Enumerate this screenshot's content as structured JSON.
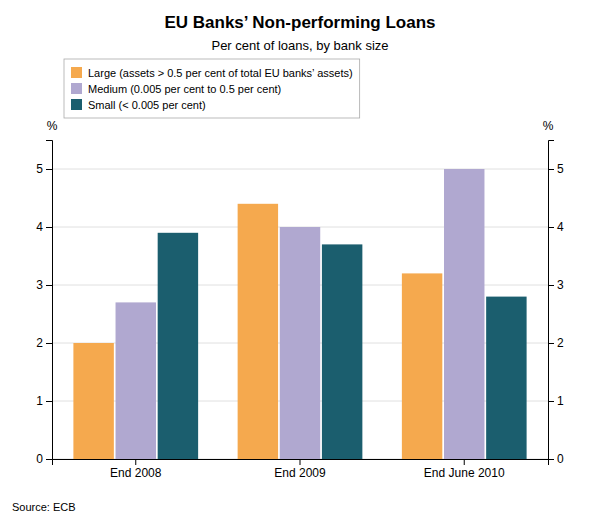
{
  "chart_data": {
    "type": "bar",
    "title": "EU Banks’ Non-performing Loans",
    "subtitle": "Per cent of loans, by bank size",
    "categories": [
      "End 2008",
      "End 2009",
      "End June 2010"
    ],
    "series": [
      {
        "name": "Large (assets > 0.5 per cent of total EU banks’ assets)",
        "color": "#F5A94E",
        "values": [
          2.0,
          4.4,
          3.2
        ]
      },
      {
        "name": "Medium (0.005 per cent to 0.5 per cent)",
        "color": "#B0A8D0",
        "values": [
          2.7,
          4.0,
          5.0
        ]
      },
      {
        "name": "Small (< 0.005 per cent)",
        "color": "#1B5E6E",
        "values": [
          3.9,
          3.7,
          2.8
        ]
      }
    ],
    "ylim": [
      0,
      5.5
    ],
    "yticks": [
      0,
      1,
      2,
      3,
      4,
      5
    ],
    "y2lim": [
      0,
      5.5
    ],
    "y2ticks": [
      0,
      1,
      2,
      3,
      4,
      5
    ],
    "ylabel": "%",
    "y2label": "%",
    "grid": true,
    "legend": "upper left",
    "source": "Source: ECB"
  }
}
